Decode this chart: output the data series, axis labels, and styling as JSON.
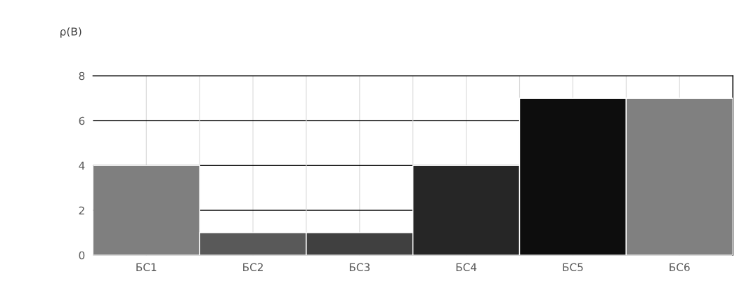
{
  "chart_data": {
    "type": "bar",
    "ylabel": "ρ(В)",
    "categories": [
      "БС1",
      "БС2",
      "БС3",
      "БС4",
      "БС5",
      "БС6"
    ],
    "values": [
      4,
      1,
      1,
      4,
      7,
      7
    ],
    "colors": [
      "#7f7f7f",
      "#595959",
      "#404040",
      "#262626",
      "#0d0d0d",
      "#808080"
    ],
    "ylim": [
      0,
      8
    ],
    "yticks": [
      0,
      2,
      4,
      6,
      8
    ],
    "grid": true
  }
}
